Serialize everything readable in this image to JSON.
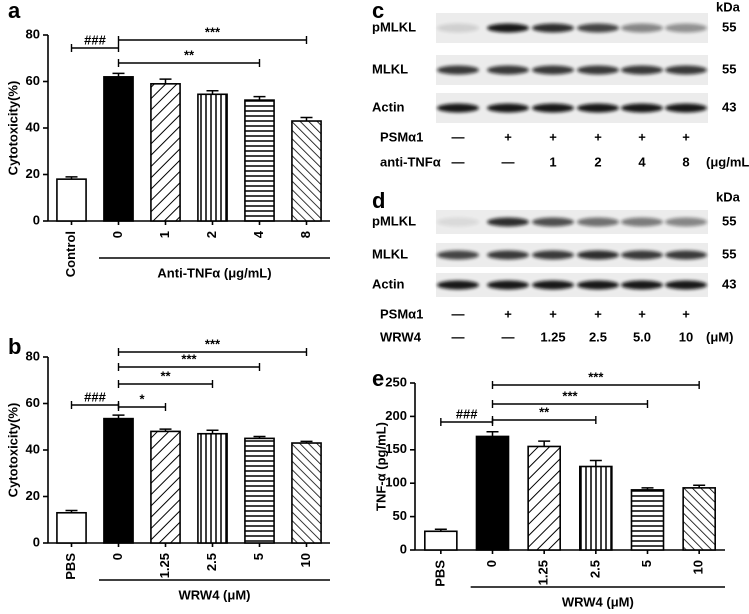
{
  "chart_data": [
    {
      "type": "bar",
      "panel": "a",
      "ylabel": "Cytotoxicity(%)",
      "categories": [
        "Control",
        "0",
        "1",
        "2",
        "4",
        "8"
      ],
      "values": [
        18,
        62,
        59,
        54.5,
        52,
        43
      ],
      "errors": [
        1,
        1.5,
        2,
        1.5,
        1.5,
        1.5
      ],
      "fills": [
        "#ffffff",
        "#000000",
        "diag-down",
        "vertical",
        "horizontal",
        "diag-up"
      ],
      "ylim": [
        0,
        80
      ],
      "yticks": [
        0,
        20,
        40,
        60,
        80
      ],
      "group_label": "Anti-TNFα (μg/mL)",
      "group_from": 1,
      "significance": [
        {
          "from": 0,
          "to": 1,
          "label": "###"
        },
        {
          "from": 1,
          "to": 5,
          "label": "***"
        },
        {
          "from": 1,
          "to": 4,
          "label": "**"
        }
      ]
    },
    {
      "type": "bar",
      "panel": "b",
      "ylabel": "Cytotoxicity(%)",
      "categories": [
        "PBS",
        "0",
        "1.25",
        "2.5",
        "5",
        "10"
      ],
      "values": [
        13,
        53.5,
        48,
        47,
        45,
        43
      ],
      "errors": [
        1,
        1.5,
        1,
        1.5,
        0.8,
        0.7
      ],
      "fills": [
        "#ffffff",
        "#000000",
        "diag-down",
        "vertical",
        "horizontal",
        "diag-up"
      ],
      "ylim": [
        0,
        80
      ],
      "yticks": [
        0,
        20,
        40,
        60,
        80
      ],
      "group_label": "WRW4 (μM)",
      "group_from": 1,
      "significance": [
        {
          "from": 0,
          "to": 1,
          "label": "###"
        },
        {
          "from": 1,
          "to": 5,
          "label": "***"
        },
        {
          "from": 1,
          "to": 4,
          "label": "***"
        },
        {
          "from": 1,
          "to": 3,
          "label": "**"
        },
        {
          "from": 1,
          "to": 2,
          "label": "*"
        }
      ]
    },
    {
      "type": "bar",
      "panel": "e",
      "ylabel": "TNF-α (pg/mL)",
      "categories": [
        "PBS",
        "0",
        "1.25",
        "2.5",
        "5",
        "10"
      ],
      "values": [
        28,
        170,
        155,
        125,
        90,
        93
      ],
      "errors": [
        3,
        7,
        8,
        9,
        3,
        4
      ],
      "fills": [
        "#ffffff",
        "#000000",
        "diag-down",
        "vertical",
        "horizontal",
        "diag-up"
      ],
      "ylim": [
        0,
        250
      ],
      "yticks": [
        0,
        50,
        100,
        150,
        200,
        250
      ],
      "group_label": "WRW4 (μM)",
      "group_from": 1,
      "significance": [
        {
          "from": 0,
          "to": 1,
          "label": "###"
        },
        {
          "from": 1,
          "to": 5,
          "label": "***"
        },
        {
          "from": 1,
          "to": 4,
          "label": "***"
        },
        {
          "from": 1,
          "to": 3,
          "label": "**"
        }
      ]
    }
  ],
  "blots": [
    {
      "panel": "c",
      "kda": "kDa",
      "rows": [
        {
          "label": "pMLKL",
          "kda": "55"
        },
        {
          "label": "MLKL",
          "kda": "55"
        },
        {
          "label": "Actin",
          "kda": "43"
        }
      ],
      "conditions": [
        {
          "label": "PSMα1",
          "cells": [
            "—",
            "+",
            "+",
            "+",
            "+",
            "+"
          ]
        },
        {
          "label": "anti-TNFα",
          "cells": [
            "—",
            "—",
            "1",
            "2",
            "4",
            "8"
          ],
          "unit": "(μg/mL)"
        }
      ]
    },
    {
      "panel": "d",
      "kda": "kDa",
      "rows": [
        {
          "label": "pMLKL",
          "kda": "55"
        },
        {
          "label": "MLKL",
          "kda": "55"
        },
        {
          "label": "Actin",
          "kda": "43"
        }
      ],
      "conditions": [
        {
          "label": "PSMα1",
          "cells": [
            "—",
            "+",
            "+",
            "+",
            "+",
            "+"
          ]
        },
        {
          "label": "WRW4",
          "cells": [
            "—",
            "—",
            "1.25",
            "2.5",
            "5.0",
            "10"
          ],
          "unit": "(μM)"
        }
      ]
    }
  ]
}
